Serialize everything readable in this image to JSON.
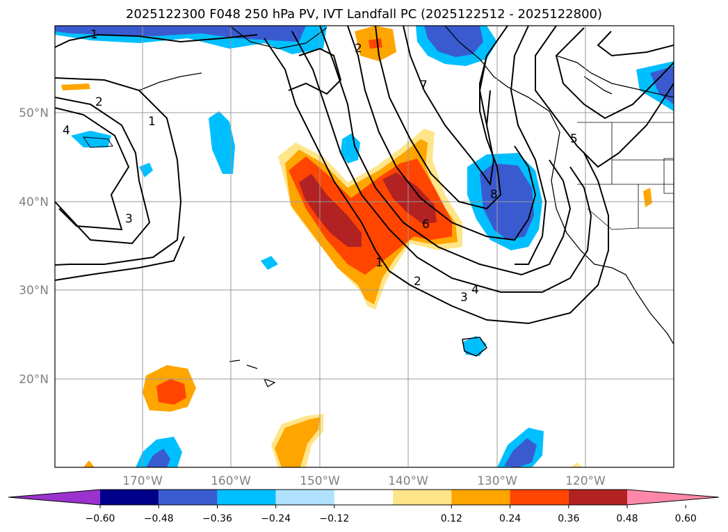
{
  "title": "2025122300 F048 250 hPa PV, IVT Landfall PC (2025122512 - 2025122800)",
  "latitude_labels": [
    "50°N",
    "40°N",
    "30°N",
    "20°N"
  ],
  "longitude_labels": [
    "170°W",
    "160°W",
    "150°W",
    "140°W",
    "130°W",
    "120°W"
  ],
  "colorbar": {
    "tick_labels": [
      "−0.60",
      "−0.48",
      "−0.36",
      "−0.24",
      "−0.12",
      "0.12",
      "0.24",
      "0.36",
      "0.48",
      "0.60"
    ],
    "colors": [
      "#9a32cd",
      "#00008b",
      "#3a5bd0",
      "#00bfff",
      "#b0e2ff",
      "#ffffff",
      "#ffe58a",
      "#ffa500",
      "#ff4500",
      "#b22222",
      "#ff88aa"
    ]
  },
  "contour_labels": [
    "1",
    "2",
    "4",
    "1",
    "3",
    "1",
    "2",
    "3",
    "4",
    "6",
    "7",
    "8",
    "5",
    "2"
  ]
}
